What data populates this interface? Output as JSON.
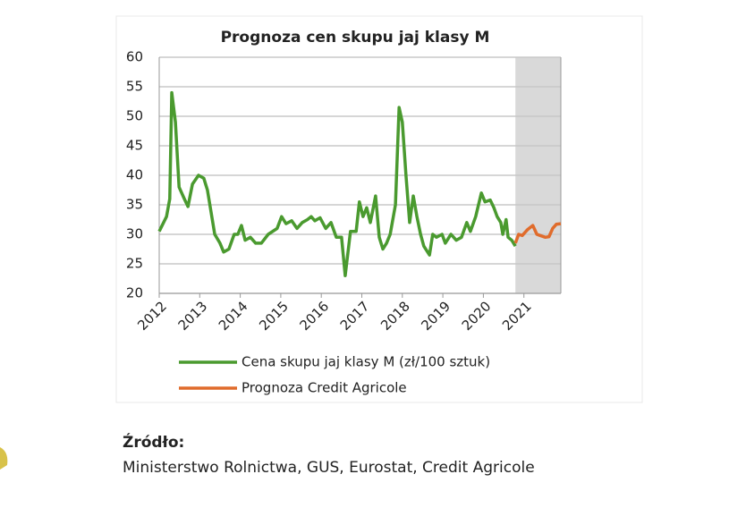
{
  "chart_data": {
    "type": "line",
    "title": "Prognoza cen skupu jaj klasy M",
    "xlim": [
      2012,
      2022
    ],
    "xticks": [
      2012,
      2013,
      2014,
      2015,
      2016,
      2017,
      2018,
      2019,
      2020,
      2021
    ],
    "ylim": [
      20,
      60
    ],
    "yticks": [
      20,
      25,
      30,
      35,
      40,
      45,
      50,
      55,
      60
    ],
    "grid": true,
    "shaded_region": [
      2020.79,
      2022
    ],
    "shaded_color": "#d9d9d9",
    "legend": "bottom",
    "series": [
      {
        "name": "Cena skupu jaj klasy M (zł/100 sztuk)",
        "color": "#4a9a2f",
        "x": [
          2012.0,
          2012.18,
          2012.26,
          2012.31,
          2012.4,
          2012.49,
          2012.62,
          2012.71,
          2012.82,
          2012.97,
          2013.1,
          2013.19,
          2013.37,
          2013.5,
          2013.59,
          2013.72,
          2013.85,
          2013.94,
          2014.03,
          2014.12,
          2014.25,
          2014.38,
          2014.52,
          2014.69,
          2014.91,
          2015.02,
          2015.13,
          2015.27,
          2015.4,
          2015.53,
          2015.66,
          2015.75,
          2015.84,
          2015.97,
          2016.11,
          2016.24,
          2016.37,
          2016.5,
          2016.59,
          2016.72,
          2016.86,
          2016.94,
          2017.03,
          2017.12,
          2017.21,
          2017.34,
          2017.43,
          2017.52,
          2017.61,
          2017.7,
          2017.83,
          2017.92,
          2018.0,
          2018.09,
          2018.18,
          2018.27,
          2018.36,
          2018.45,
          2018.53,
          2018.67,
          2018.75,
          2018.84,
          2018.98,
          2019.06,
          2019.2,
          2019.33,
          2019.46,
          2019.59,
          2019.68,
          2019.81,
          2019.95,
          2020.04,
          2020.17,
          2020.26,
          2020.34,
          2020.43,
          2020.48,
          2020.56,
          2020.61,
          2020.7,
          2020.79
        ],
        "values": [
          30.5,
          33,
          36,
          54,
          49,
          38,
          36,
          34.7,
          38.5,
          40,
          39.5,
          37.5,
          30,
          28.5,
          27,
          27.5,
          30,
          30,
          31.5,
          29,
          29.5,
          28.5,
          28.5,
          30,
          31,
          33,
          31.8,
          32.3,
          31,
          32,
          32.5,
          33,
          32.3,
          32.8,
          31,
          32,
          29.5,
          29.5,
          23,
          30.5,
          30.5,
          35.5,
          33,
          34.5,
          32,
          36.5,
          29.5,
          27.5,
          28.5,
          30,
          35,
          51.5,
          49,
          40,
          32,
          36.5,
          33,
          30,
          28,
          26.5,
          30,
          29.5,
          30,
          28.5,
          30,
          29,
          29.5,
          32,
          30.5,
          33,
          37,
          35.5,
          35.8,
          34.5,
          33,
          32,
          30,
          32.5,
          29.5,
          29,
          28
        ]
      },
      {
        "name": "Prognoza Credit Agricole",
        "color": "#e06c2c",
        "x": [
          2020.79,
          2020.87,
          2020.96,
          2021.09,
          2021.22,
          2021.32,
          2021.4,
          2021.53,
          2021.62,
          2021.71,
          2021.8,
          2021.91
        ],
        "values": [
          28.5,
          30,
          29.8,
          30.8,
          31.5,
          30,
          29.8,
          29.5,
          29.6,
          31,
          31.7,
          31.8
        ]
      }
    ]
  },
  "source": {
    "label": "Źródło:",
    "text": "Ministerstwo Rolnictwa, GUS, Eurostat, Credit Agricole"
  }
}
